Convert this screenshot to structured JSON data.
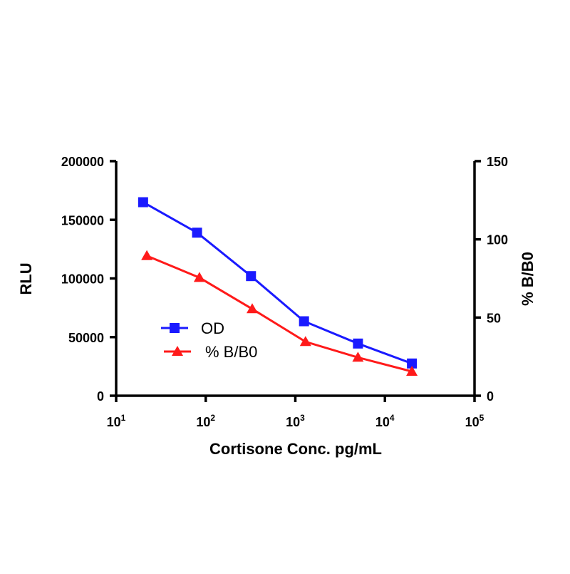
{
  "chart_data": {
    "type": "line",
    "xlabel": "Cortisone Conc. pg/mL",
    "ylabel": "RLU",
    "y2label": "% B/B0",
    "x_scale": "log",
    "xlim": [
      10,
      100000
    ],
    "ylim": [
      0,
      200000
    ],
    "y2lim": [
      0,
      150
    ],
    "x_ticks": [
      {
        "value": 10,
        "base": "10",
        "exp": "1"
      },
      {
        "value": 100,
        "base": "10",
        "exp": "2"
      },
      {
        "value": 1000,
        "base": "10",
        "exp": "3"
      },
      {
        "value": 10000,
        "base": "10",
        "exp": "4"
      },
      {
        "value": 100000,
        "base": "10",
        "exp": "5"
      }
    ],
    "y_ticks": [
      {
        "value": 0,
        "label": "0"
      },
      {
        "value": 50000,
        "label": "50000"
      },
      {
        "value": 100000,
        "label": "100000"
      },
      {
        "value": 150000,
        "label": "150000"
      },
      {
        "value": 200000,
        "label": "200000"
      }
    ],
    "y2_ticks": [
      {
        "value": 0,
        "label": "0"
      },
      {
        "value": 50,
        "label": "50"
      },
      {
        "value": 100,
        "label": "100"
      },
      {
        "value": 150,
        "label": "150"
      }
    ],
    "grid": false,
    "legend_position": "center-left",
    "series": [
      {
        "name": "OD",
        "axis": "left",
        "marker": "square",
        "color": "#1a1aff",
        "x": [
          20,
          80,
          320,
          1250,
          5000,
          20000
        ],
        "y": [
          165000,
          139000,
          102000,
          63500,
          44500,
          27500
        ]
      },
      {
        "name": "% B/B0",
        "axis": "right",
        "marker": "triangle",
        "color": "#ff1a1a",
        "x": [
          22,
          85,
          330,
          1300,
          5000,
          20000
        ],
        "y": [
          89.5,
          75.5,
          55.5,
          34.5,
          24.5,
          15.5
        ]
      }
    ]
  }
}
